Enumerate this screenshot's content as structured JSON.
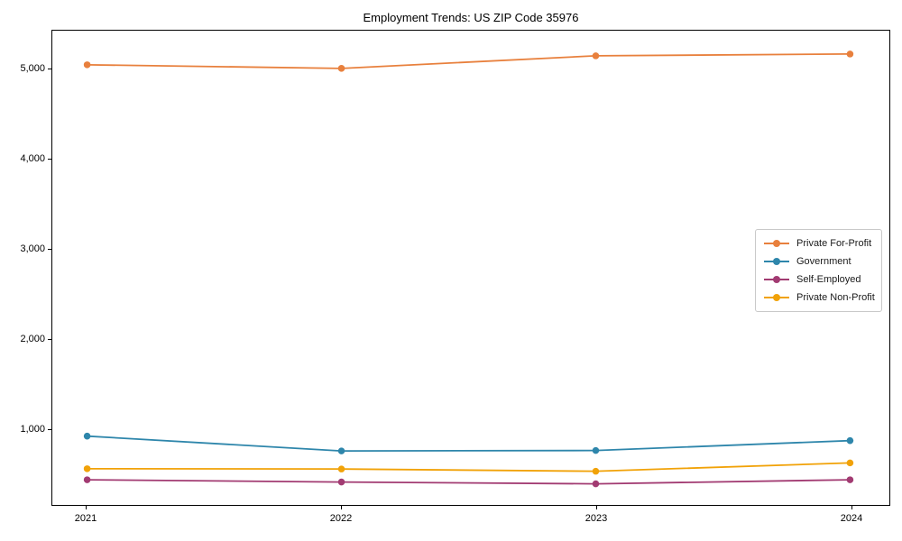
{
  "chart_data": {
    "type": "line",
    "title": "Employment Trends: US ZIP Code 35976",
    "x": [
      2021,
      2022,
      2023,
      2024
    ],
    "xtick_labels": [
      "2021",
      "2022",
      "2023",
      "2024"
    ],
    "yticks": [
      1000,
      2000,
      3000,
      4000,
      5000
    ],
    "ytick_labels": [
      "1,000",
      "2,000",
      "3,000",
      "4,000",
      "5,000"
    ],
    "ylim": [
      150,
      5425
    ],
    "grid": false,
    "legend_position": "center right",
    "marker": "circle",
    "series": [
      {
        "name": "Private For-Profit",
        "color": "#E8803D",
        "values": [
          5045,
          5005,
          5145,
          5165
        ]
      },
      {
        "name": "Government",
        "color": "#2E86AB",
        "values": [
          915,
          750,
          755,
          865
        ]
      },
      {
        "name": "Self-Employed",
        "color": "#A23B72",
        "values": [
          430,
          405,
          385,
          430
        ]
      },
      {
        "name": "Private Non-Profit",
        "color": "#F1A208",
        "values": [
          553,
          550,
          525,
          618
        ]
      }
    ]
  }
}
